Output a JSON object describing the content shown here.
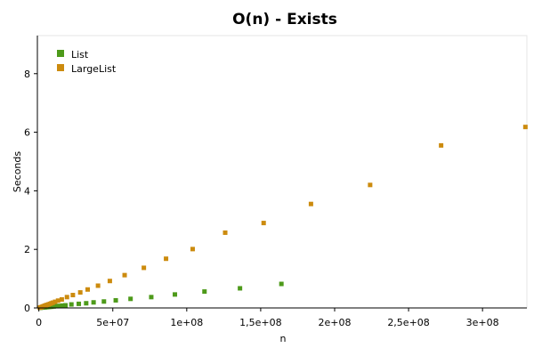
{
  "chart_data": {
    "type": "scatter",
    "title": "O(n) - Exists",
    "xlabel": "n",
    "ylabel": "Seconds",
    "xlim": [
      -1000000,
      330000000
    ],
    "ylim": [
      0,
      9.3
    ],
    "x_ticks": [
      {
        "value": 0,
        "label": "0"
      },
      {
        "value": 50000000,
        "label": "5e+07"
      },
      {
        "value": 100000000,
        "label": "1e+08"
      },
      {
        "value": 150000000,
        "label": "1,5e+08"
      },
      {
        "value": 200000000,
        "label": "2e+08"
      },
      {
        "value": 250000000,
        "label": "2,5e+08"
      },
      {
        "value": 300000000,
        "label": "3e+08"
      }
    ],
    "y_ticks": [
      {
        "value": 0,
        "label": "0"
      },
      {
        "value": 2,
        "label": "2"
      },
      {
        "value": 4,
        "label": "4"
      },
      {
        "value": 6,
        "label": "6"
      },
      {
        "value": 8,
        "label": "8"
      }
    ],
    "grid": false,
    "legend_position": "top-left",
    "series": [
      {
        "name": "List",
        "color": "#4d9a1a",
        "points": [
          [
            1000000,
            0.006
          ],
          [
            2000000,
            0.011
          ],
          [
            3000000,
            0.015
          ],
          [
            4000000,
            0.02
          ],
          [
            5000000,
            0.025
          ],
          [
            6000000,
            0.03
          ],
          [
            7000000,
            0.035
          ],
          [
            8500000,
            0.04
          ],
          [
            10000000,
            0.05
          ],
          [
            12000000,
            0.06
          ],
          [
            14000000,
            0.07
          ],
          [
            16000000,
            0.08
          ],
          [
            18000000,
            0.09
          ],
          [
            22000000,
            0.12
          ],
          [
            27000000,
            0.14
          ],
          [
            32000000,
            0.16
          ],
          [
            37000000,
            0.19
          ],
          [
            44000000,
            0.22
          ],
          [
            52000000,
            0.26
          ],
          [
            62000000,
            0.31
          ],
          [
            76000000,
            0.37
          ],
          [
            92000000,
            0.46
          ],
          [
            112000000,
            0.56
          ],
          [
            136000000,
            0.67
          ],
          [
            164000000,
            0.82
          ]
        ]
      },
      {
        "name": "LargeList",
        "color": "#cc8b0e",
        "points": [
          [
            600000,
            0.01
          ],
          [
            1200000,
            0.02
          ],
          [
            1800000,
            0.03
          ],
          [
            2500000,
            0.045
          ],
          [
            3200000,
            0.06
          ],
          [
            4000000,
            0.075
          ],
          [
            4800000,
            0.09
          ],
          [
            5600000,
            0.105
          ],
          [
            6500000,
            0.12
          ],
          [
            7500000,
            0.14
          ],
          [
            8500000,
            0.16
          ],
          [
            9500000,
            0.18
          ],
          [
            11000000,
            0.21
          ],
          [
            13000000,
            0.25
          ],
          [
            15500000,
            0.29
          ],
          [
            19000000,
            0.37
          ],
          [
            23000000,
            0.44
          ],
          [
            28000000,
            0.53
          ],
          [
            33000000,
            0.63
          ],
          [
            40000000,
            0.76
          ],
          [
            48000000,
            0.92
          ],
          [
            58000000,
            1.12
          ],
          [
            71000000,
            1.37
          ],
          [
            86000000,
            1.68
          ],
          [
            104000000,
            2.01
          ],
          [
            126000000,
            2.57
          ],
          [
            152000000,
            2.9
          ],
          [
            184000000,
            3.55
          ],
          [
            224000000,
            4.2
          ],
          [
            272000000,
            5.55
          ],
          [
            329000000,
            6.18
          ]
        ]
      }
    ]
  }
}
